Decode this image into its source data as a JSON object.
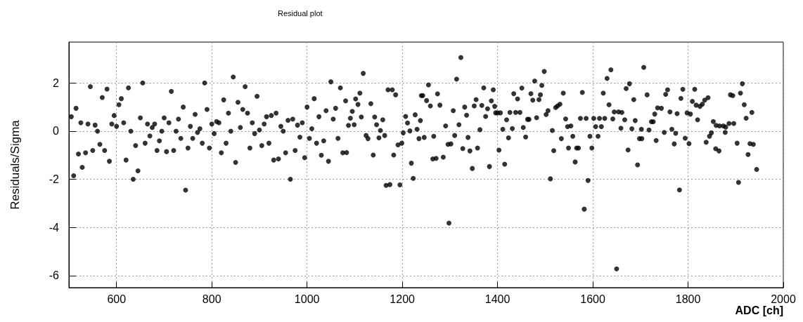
{
  "chart_data": {
    "type": "scatter",
    "title": "Residual plot",
    "xlabel": "ADC [ch]",
    "ylabel": "Residuals/Sigma",
    "x": [
      505,
      510,
      515,
      520,
      525,
      528,
      535,
      540,
      545,
      550,
      555,
      560,
      565,
      570,
      575,
      580,
      585,
      590,
      595,
      600,
      605,
      610,
      615,
      620,
      625,
      630,
      635,
      640,
      645,
      650,
      655,
      660,
      665,
      670,
      675,
      680,
      685,
      690,
      695,
      700,
      705,
      710,
      715,
      720,
      725,
      730,
      735,
      740,
      745,
      750,
      755,
      760,
      765,
      770,
      775,
      780,
      785,
      790,
      795,
      800,
      805,
      810,
      815,
      820,
      825,
      830,
      835,
      840,
      845,
      850,
      855,
      860,
      865,
      870,
      875,
      880,
      885,
      890,
      895,
      900,
      905,
      910,
      915,
      920,
      925,
      930,
      935,
      940,
      945,
      950,
      955,
      960,
      965,
      970,
      975,
      980,
      985,
      990,
      995,
      1000,
      1005,
      1010,
      1015,
      1020,
      1025,
      1030,
      1035,
      1040,
      1045,
      1050,
      1055,
      1060,
      1065,
      1070,
      1075,
      1081,
      1083,
      1087,
      1091,
      1095,
      1099,
      1102,
      1107,
      1111,
      1114,
      1118,
      1124,
      1128,
      1134,
      1139,
      1142,
      1146,
      1151,
      1154,
      1159,
      1163,
      1166,
      1170,
      1174,
      1179,
      1182,
      1186,
      1191,
      1195,
      1199,
      1202,
      1207,
      1211,
      1216,
      1219,
      1223,
      1227,
      1231,
      1235,
      1238,
      1240,
      1243,
      1246,
      1251,
      1255,
      1259,
      1264,
      1266,
      1271,
      1274,
      1279,
      1286,
      1291,
      1296,
      1298,
      1302,
      1307,
      1310,
      1314,
      1319,
      1323,
      1327,
      1331,
      1335,
      1338,
      1342,
      1347,
      1351,
      1355,
      1358,
      1363,
      1367,
      1371,
      1375,
      1379,
      1383,
      1387,
      1391,
      1394,
      1396,
      1400,
      1403,
      1406,
      1411,
      1415,
      1419,
      1423,
      1426,
      1431,
      1434,
      1438,
      1442,
      1447,
      1451,
      1454,
      1459,
      1463,
      1466,
      1470,
      1474,
      1478,
      1482,
      1487,
      1490,
      1493,
      1498,
      1502,
      1506,
      1511,
      1515,
      1518,
      1522,
      1526,
      1531,
      1534,
      1538,
      1543,
      1547,
      1549,
      1554,
      1558,
      1563,
      1566,
      1570,
      1574,
      1578,
      1582,
      1586,
      1590,
      1594,
      1598,
      1602,
      1606,
      1611,
      1614,
      1618,
      1622,
      1625,
      1630,
      1634,
      1638,
      1642,
      1645,
      1650,
      1654,
      1659,
      1661,
      1667,
      1670,
      1674,
      1677,
      1682,
      1686,
      1689,
      1694,
      1698,
      1702,
      1703,
      1707,
      1714,
      1718,
      1723,
      1727,
      1730,
      1733,
      1736,
      1744,
      1750,
      1753,
      1757,
      1762,
      1766,
      1771,
      1774,
      1777,
      1782,
      1785,
      1789,
      1794,
      1798,
      1802,
      1805,
      1809,
      1814,
      1817,
      1820,
      1825,
      1830,
      1835,
      1838,
      1842,
      1845,
      1849,
      1853,
      1858,
      1859,
      1865,
      1866,
      1874,
      1878,
      1879,
      1886,
      1889,
      1894,
      1896,
      1903,
      1906,
      1910,
      1914,
      1918,
      1922,
      1926,
      1930,
      1934,
      1937,
      1944
    ],
    "values": [
      0.6,
      -1.85,
      0.95,
      -0.95,
      0.35,
      -1.5,
      -0.9,
      0.3,
      1.85,
      -0.8,
      0.25,
      0.0,
      -0.55,
      1.4,
      -0.8,
      1.75,
      -1.25,
      0.3,
      0.65,
      0.2,
      1.1,
      1.35,
      0.35,
      -1.2,
      1.8,
      0.0,
      -2.0,
      -0.6,
      -1.65,
      0.55,
      2.0,
      -0.5,
      0.3,
      -0.2,
      0.15,
      0.3,
      -0.8,
      -0.4,
      0.0,
      0.55,
      -0.85,
      0.35,
      1.65,
      -0.8,
      0.0,
      0.5,
      -0.3,
      1.0,
      -2.45,
      -0.7,
      0.2,
      -0.3,
      0.7,
      -0.05,
      0.1,
      -0.5,
      2.0,
      0.9,
      -0.7,
      0.3,
      -0.1,
      0.4,
      0.35,
      -0.9,
      1.3,
      -0.5,
      0.75,
      0.0,
      2.25,
      -1.3,
      1.2,
      0.15,
      0.9,
      1.85,
      0.75,
      -0.7,
      0.35,
      -0.1,
      1.45,
      0.05,
      -0.6,
      0.3,
      0.6,
      -0.5,
      0.65,
      -1.2,
      0.75,
      -1.15,
      0.2,
      0.0,
      -0.9,
      0.45,
      -2.0,
      0.5,
      -0.8,
      0.25,
      -0.25,
      0.35,
      -1.1,
      1.0,
      -0.3,
      0.1,
      1.35,
      -0.5,
      0.6,
      -1.0,
      -0.4,
      0.85,
      -1.25,
      2.05,
      0.5,
      0.95,
      -0.3,
      1.8,
      -0.9,
      1.26,
      -0.89,
      0.24,
      0.54,
      0.82,
      0.27,
      1.34,
      1.11,
      1.58,
      0.59,
      2.4,
      -0.18,
      -0.31,
      1.14,
      -0.99,
      0.59,
      0.27,
      -0.28,
      0.03,
      0.47,
      -0.18,
      -2.25,
      1.72,
      -2.22,
      1.72,
      -0.99,
      1.51,
      -0.57,
      -2.23,
      -0.5,
      -0.07,
      0.61,
      0.34,
      0.01,
      -1.33,
      -1.96,
      0.68,
      0.08,
      -0.31,
      0.44,
      1.48,
      1.48,
      -0.26,
      1.27,
      1.92,
      1.05,
      -1.15,
      -0.21,
      -1.13,
      1.55,
      1.08,
      -1.08,
      0.22,
      -0.55,
      -3.82,
      -0.53,
      0.85,
      -0.18,
      2.16,
      0.27,
      3.06,
      -0.72,
      1.0,
      0.66,
      -0.26,
      -0.82,
      -1.55,
      1.05,
      1.31,
      -0.7,
      0.06,
      1.07,
      1.8,
      0.61,
      0.93,
      -1.47,
      1.26,
      1.72,
      1.03,
      0.76,
      0.76,
      -0.79,
      0.76,
      0.08,
      -1.37,
      0.47,
      -0.28,
      0.78,
      0.11,
      1.56,
      0.78,
      1.34,
      0.78,
      1.79,
      0.15,
      -0.24,
      0.49,
      0.49,
      1.56,
      1.29,
      2.08,
      0.56,
      1.31,
      1.51,
      1.9,
      2.48,
      0.69,
      0.85,
      -1.98,
      0.03,
      -0.81,
      0.98,
      1.05,
      1.12,
      -0.31,
      1.58,
      0.51,
      0.19,
      -0.7,
      0.22,
      -0.21,
      -1.28,
      -0.7,
      -0.7,
      0.53,
      1.61,
      -3.24,
      0.53,
      -2.05,
      -0.21,
      -0.7,
      0.53,
      0.19,
      -0.21,
      0.53,
      0.19,
      1.58,
      0.53,
      2.19,
      1.1,
      2.55,
      0.51,
      0.8,
      -5.72,
      0.8,
      0.12,
      0.78,
      0.47,
      1.77,
      -0.78,
      1.97,
      0.1,
      1.31,
      0.44,
      -1.4,
      -0.31,
      0.08,
      -0.31,
      2.65,
      1.51,
      0.05,
      0.39,
      0.39,
      0.71,
      -0.39,
      0.97,
      0.95,
      -0.05,
      1.53,
      1.72,
      0.8,
      0.08,
      -0.53,
      -0.09,
      0.73,
      -2.44,
      1.36,
      1.74,
      -0.29,
      0.76,
      -0.52,
      0.71,
      1.24,
      1.74,
      1.08,
      0.47,
      1.03,
      1.12,
      1.29,
      -0.46,
      1.39,
      -0.21,
      -0.07,
      0.4,
      -0.73,
      0.24,
      -0.82,
      0.22,
      0.22,
      -0.05,
      0.17,
      0.32,
      1.51,
      1.48,
      0.32,
      -0.5,
      -2.13,
      1.58,
      1.97,
      1.1,
      0.54,
      -0.97,
      -0.52,
      0.78,
      -0.55,
      -1.59
    ],
    "color": "#000000",
    "marker": "circle",
    "grid": true,
    "xlim": [
      500,
      2000
    ],
    "xticks": [
      600,
      800,
      1000,
      1200,
      1400,
      1600,
      1800,
      2000
    ],
    "ylim": [
      -6.5,
      3.7
    ],
    "yticks": [
      -6,
      -4,
      -2,
      0,
      2
    ]
  }
}
